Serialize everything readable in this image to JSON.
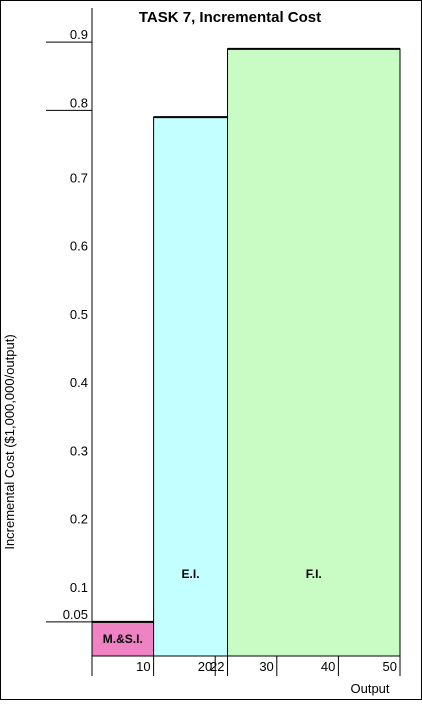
{
  "chart_data": {
    "type": "bar",
    "title": "TASK 7, Incremental Cost",
    "xlabel": "Output",
    "ylabel": "Incremental Cost ($1,000,000/output)",
    "xlim": [
      0,
      50
    ],
    "ylim": [
      0,
      0.95
    ],
    "grid": false,
    "yticks": [
      {
        "value": 0.05,
        "label": "0.05",
        "long": true
      },
      {
        "value": 0.1,
        "label": "0.1",
        "long": false
      },
      {
        "value": 0.2,
        "label": "0.2",
        "long": false
      },
      {
        "value": 0.3,
        "label": "0.3",
        "long": false
      },
      {
        "value": 0.4,
        "label": "0.4",
        "long": false
      },
      {
        "value": 0.5,
        "label": "0.5",
        "long": false
      },
      {
        "value": 0.6,
        "label": "0.6",
        "long": false
      },
      {
        "value": 0.7,
        "label": "0.7",
        "long": false
      },
      {
        "value": 0.8,
        "label": "0.8",
        "long": true
      },
      {
        "value": 0.9,
        "label": "0.9",
        "long": true
      }
    ],
    "xticks": [
      {
        "value": 10,
        "label": "10"
      },
      {
        "value": 20,
        "label": "20"
      },
      {
        "value": 22,
        "label": "22"
      },
      {
        "value": 30,
        "label": "30"
      },
      {
        "value": 40,
        "label": "40"
      },
      {
        "value": 50,
        "label": "50"
      }
    ],
    "bars": [
      {
        "label": "M.&S.I.",
        "x_start": 0,
        "x_end": 10,
        "value": 0.05,
        "color": "#ee82c3",
        "label_y": 0.025
      },
      {
        "label": "E.I.",
        "x_start": 10,
        "x_end": 22,
        "value": 0.79,
        "color": "#c4ffff",
        "label_y": 0.12
      },
      {
        "label": "F.I.",
        "x_start": 22,
        "x_end": 50,
        "value": 0.89,
        "color": "#c8fcc4",
        "label_y": 0.12
      }
    ]
  }
}
